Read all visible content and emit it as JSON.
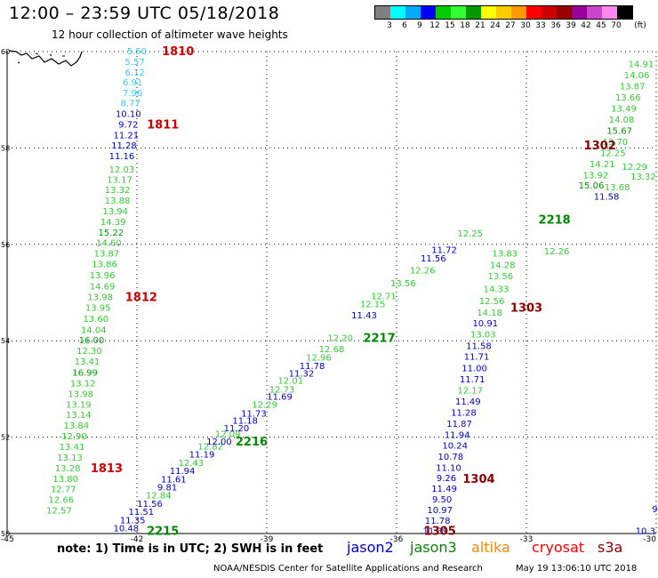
{
  "header": {
    "title": "12:00 – 23:59 UTC 05/18/2018",
    "subtitle": "12 hour collection of altimeter wave heights"
  },
  "legend": {
    "unit": "(ft)",
    "colors": [
      "#808080",
      "#00ffff",
      "#00aaff",
      "#0000ff",
      "#00cc00",
      "#33ff33",
      "#009900",
      "#ffff00",
      "#ffcc00",
      "#ff9900",
      "#ff0000",
      "#cc0000",
      "#990000",
      "#990099",
      "#cc44cc",
      "#ff88ee",
      "#000000"
    ],
    "labels": [
      "3",
      "6",
      "9",
      "12",
      "15",
      "18",
      "21",
      "24",
      "27",
      "30",
      "33",
      "36",
      "39",
      "42",
      "45",
      "70"
    ]
  },
  "axes": {
    "lat_labels": [
      "60",
      "58",
      "56",
      "54",
      "52",
      "50"
    ],
    "lon_labels": [
      "-45",
      "-42",
      "-39",
      "-36",
      "-33",
      "-30"
    ]
  },
  "colors": {
    "jason2": "#0000cc",
    "jason3": "#008800",
    "altika": "#ff8800",
    "cryosat": "#ff0000",
    "s3a": "#880000",
    "grid": "#000000"
  },
  "obs": [
    {
      "t": "5.50",
      "c": "#33ccff",
      "lon": -42.0,
      "lat": 60.0
    },
    {
      "t": "5.57",
      "c": "#33ccff",
      "lon": -42.05,
      "lat": 59.78
    },
    {
      "t": "6.12",
      "c": "#33ccff",
      "lon": -42.05,
      "lat": 59.56
    },
    {
      "t": "6.91",
      "c": "#33ccff",
      "lon": -42.1,
      "lat": 59.35
    },
    {
      "t": "7.96",
      "c": "#33ccff",
      "lon": -42.1,
      "lat": 59.13
    },
    {
      "t": "8.77",
      "c": "#33ccff",
      "lon": -42.15,
      "lat": 58.92
    },
    {
      "t": "10.10",
      "c": "#0000cc",
      "lon": -42.2,
      "lat": 58.7
    },
    {
      "t": "9.72",
      "c": "#0000cc",
      "lon": -42.2,
      "lat": 58.48
    },
    {
      "t": "11.21",
      "c": "#0000cc",
      "lon": -42.25,
      "lat": 58.26
    },
    {
      "t": "11.28",
      "c": "#0000cc",
      "lon": -42.3,
      "lat": 58.04
    },
    {
      "t": "11.16",
      "c": "#0000cc",
      "lon": -42.35,
      "lat": 57.82
    },
    {
      "t": "12.03",
      "c": "#33cc33",
      "lon": -42.35,
      "lat": 57.55
    },
    {
      "t": "13.17",
      "c": "#33cc33",
      "lon": -42.4,
      "lat": 57.33
    },
    {
      "t": "13.32",
      "c": "#33cc33",
      "lon": -42.45,
      "lat": 57.12
    },
    {
      "t": "13.88",
      "c": "#33cc33",
      "lon": -42.45,
      "lat": 56.9
    },
    {
      "t": "13.94",
      "c": "#33cc33",
      "lon": -42.5,
      "lat": 56.68
    },
    {
      "t": "14.39",
      "c": "#33cc33",
      "lon": -42.55,
      "lat": 56.46
    },
    {
      "t": "15.22",
      "c": "#009900",
      "lon": -42.6,
      "lat": 56.24
    },
    {
      "t": "14.60",
      "c": "#33cc33",
      "lon": -42.65,
      "lat": 56.02
    },
    {
      "t": "13.87",
      "c": "#33cc33",
      "lon": -42.7,
      "lat": 55.8
    },
    {
      "t": "13.86",
      "c": "#33cc33",
      "lon": -42.75,
      "lat": 55.58
    },
    {
      "t": "13.96",
      "c": "#33cc33",
      "lon": -42.8,
      "lat": 55.35
    },
    {
      "t": "14.69",
      "c": "#33cc33",
      "lon": -42.8,
      "lat": 55.12
    },
    {
      "t": "13.98",
      "c": "#33cc33",
      "lon": -42.85,
      "lat": 54.9
    },
    {
      "t": "13.95",
      "c": "#33cc33",
      "lon": -42.9,
      "lat": 54.68
    },
    {
      "t": "13.60",
      "c": "#33cc33",
      "lon": -42.95,
      "lat": 54.45
    },
    {
      "t": "14.04",
      "c": "#33cc33",
      "lon": -43.0,
      "lat": 54.22
    },
    {
      "t": "16.00",
      "c": "#009900",
      "lon": -43.05,
      "lat": 54.0
    },
    {
      "t": "12.30",
      "c": "#33cc33",
      "lon": -43.1,
      "lat": 53.78
    },
    {
      "t": "13.41",
      "c": "#33cc33",
      "lon": -43.15,
      "lat": 53.56
    },
    {
      "t": "16.99",
      "c": "#009900",
      "lon": -43.2,
      "lat": 53.33
    },
    {
      "t": "13.12",
      "c": "#33cc33",
      "lon": -43.25,
      "lat": 53.11
    },
    {
      "t": "13.98",
      "c": "#33cc33",
      "lon": -43.3,
      "lat": 52.89
    },
    {
      "t": "13.19",
      "c": "#33cc33",
      "lon": -43.35,
      "lat": 52.67
    },
    {
      "t": "13.14",
      "c": "#33cc33",
      "lon": -43.35,
      "lat": 52.45
    },
    {
      "t": "13.84",
      "c": "#33cc33",
      "lon": -43.4,
      "lat": 52.23
    },
    {
      "t": "12.90",
      "c": "#33cc33",
      "lon": -43.45,
      "lat": 52.01
    },
    {
      "t": "13.41",
      "c": "#33cc33",
      "lon": -43.5,
      "lat": 51.79
    },
    {
      "t": "13.13",
      "c": "#33cc33",
      "lon": -43.55,
      "lat": 51.57
    },
    {
      "t": "13.28",
      "c": "#33cc33",
      "lon": -43.6,
      "lat": 51.35
    },
    {
      "t": "13.80",
      "c": "#33cc33",
      "lon": -43.65,
      "lat": 51.13
    },
    {
      "t": "12.77",
      "c": "#33cc33",
      "lon": -43.7,
      "lat": 50.91
    },
    {
      "t": "12.66",
      "c": "#33cc33",
      "lon": -43.75,
      "lat": 50.69
    },
    {
      "t": "12.57",
      "c": "#33cc33",
      "lon": -43.8,
      "lat": 50.47
    },
    {
      "t": "10.48",
      "c": "#0000cc",
      "lon": -42.25,
      "lat": 50.1
    },
    {
      "t": "11.35",
      "c": "#0000cc",
      "lon": -42.1,
      "lat": 50.27
    },
    {
      "t": "11.51",
      "c": "#0000cc",
      "lon": -41.9,
      "lat": 50.44
    },
    {
      "t": "11.56",
      "c": "#0000cc",
      "lon": -41.7,
      "lat": 50.61
    },
    {
      "t": "12.84",
      "c": "#33cc33",
      "lon": -41.5,
      "lat": 50.78
    },
    {
      "t": "9.81",
      "c": "#0000cc",
      "lon": -41.3,
      "lat": 50.95
    },
    {
      "t": "11.61",
      "c": "#0000cc",
      "lon": -41.15,
      "lat": 51.12
    },
    {
      "t": "11.94",
      "c": "#0000cc",
      "lon": -40.95,
      "lat": 51.29
    },
    {
      "t": "12.43",
      "c": "#33cc33",
      "lon": -40.75,
      "lat": 51.46
    },
    {
      "t": "11.19",
      "c": "#0000cc",
      "lon": -40.5,
      "lat": 51.63
    },
    {
      "t": "12.82",
      "c": "#33cc33",
      "lon": -40.3,
      "lat": 51.8
    },
    {
      "t": "12.00",
      "c": "#0000cc",
      "lon": -40.1,
      "lat": 51.9
    },
    {
      "t": "12.09",
      "c": "#33cc33",
      "lon": -39.9,
      "lat": 52.06
    },
    {
      "t": "11.20",
      "c": "#0000cc",
      "lon": -39.7,
      "lat": 52.18
    },
    {
      "t": "11.18",
      "c": "#0000cc",
      "lon": -39.5,
      "lat": 52.33
    },
    {
      "t": "11.73",
      "c": "#0000cc",
      "lon": -39.3,
      "lat": 52.48
    },
    {
      "t": "12.29",
      "c": "#33cc33",
      "lon": -39.05,
      "lat": 52.67
    },
    {
      "t": "11.69",
      "c": "#0000cc",
      "lon": -38.7,
      "lat": 52.83
    },
    {
      "t": "12.73",
      "c": "#33cc33",
      "lon": -38.65,
      "lat": 52.98
    },
    {
      "t": "12.01",
      "c": "#33cc33",
      "lon": -38.45,
      "lat": 53.16
    },
    {
      "t": "11.32",
      "c": "#0000cc",
      "lon": -38.2,
      "lat": 53.31
    },
    {
      "t": "11.78",
      "c": "#0000cc",
      "lon": -37.95,
      "lat": 53.47
    },
    {
      "t": "12.96",
      "c": "#33cc33",
      "lon": -37.8,
      "lat": 53.64
    },
    {
      "t": "12.68",
      "c": "#33cc33",
      "lon": -37.5,
      "lat": 53.82
    },
    {
      "t": "12.20",
      "c": "#33cc33",
      "lon": -37.3,
      "lat": 54.05
    },
    {
      "t": "11.43",
      "c": "#0000cc",
      "lon": -36.75,
      "lat": 54.52
    },
    {
      "t": "12.15",
      "c": "#33cc33",
      "lon": -36.55,
      "lat": 54.75
    },
    {
      "t": "12.71",
      "c": "#33cc33",
      "lon": -36.3,
      "lat": 54.92
    },
    {
      "t": "13.56",
      "c": "#33cc33",
      "lon": -35.85,
      "lat": 55.18
    },
    {
      "t": "12.26",
      "c": "#33cc33",
      "lon": -35.4,
      "lat": 55.45
    },
    {
      "t": "11.56",
      "c": "#0000cc",
      "lon": -35.15,
      "lat": 55.7
    },
    {
      "t": "11.72",
      "c": "#0000cc",
      "lon": -34.9,
      "lat": 55.88
    },
    {
      "t": "12.25",
      "c": "#33cc33",
      "lon": -34.3,
      "lat": 56.22
    },
    {
      "t": "13.83",
      "c": "#33cc33",
      "lon": -33.5,
      "lat": 55.8
    },
    {
      "t": "14.28",
      "c": "#33cc33",
      "lon": -33.55,
      "lat": 55.56
    },
    {
      "t": "13.56",
      "c": "#33cc33",
      "lon": -33.6,
      "lat": 55.33
    },
    {
      "t": "14.33",
      "c": "#33cc33",
      "lon": -33.7,
      "lat": 55.06
    },
    {
      "t": "12.56",
      "c": "#33cc33",
      "lon": -33.8,
      "lat": 54.82
    },
    {
      "t": "14.18",
      "c": "#33cc33",
      "lon": -33.85,
      "lat": 54.58
    },
    {
      "t": "10.91",
      "c": "#0000cc",
      "lon": -33.95,
      "lat": 54.35
    },
    {
      "t": "13.03",
      "c": "#33cc33",
      "lon": -34.0,
      "lat": 54.12
    },
    {
      "t": "11.58",
      "c": "#0000cc",
      "lon": -34.1,
      "lat": 53.88
    },
    {
      "t": "11.71",
      "c": "#0000cc",
      "lon": -34.15,
      "lat": 53.66
    },
    {
      "t": "11.00",
      "c": "#0000cc",
      "lon": -34.2,
      "lat": 53.42
    },
    {
      "t": "11.71",
      "c": "#0000cc",
      "lon": -34.25,
      "lat": 53.19
    },
    {
      "t": "12.17",
      "c": "#33cc33",
      "lon": -34.3,
      "lat": 52.96
    },
    {
      "t": "11.49",
      "c": "#0000cc",
      "lon": -34.35,
      "lat": 52.73
    },
    {
      "t": "11.28",
      "c": "#0000cc",
      "lon": -34.45,
      "lat": 52.5
    },
    {
      "t": "11.87",
      "c": "#0000cc",
      "lon": -34.55,
      "lat": 52.27
    },
    {
      "t": "11.94",
      "c": "#0000cc",
      "lon": -34.6,
      "lat": 52.04
    },
    {
      "t": "10.24",
      "c": "#0000cc",
      "lon": -34.65,
      "lat": 51.82
    },
    {
      "t": "10.78",
      "c": "#0000cc",
      "lon": -34.75,
      "lat": 51.59
    },
    {
      "t": "11.10",
      "c": "#0000cc",
      "lon": -34.8,
      "lat": 51.36
    },
    {
      "t": "9.26",
      "c": "#0000cc",
      "lon": -34.85,
      "lat": 51.14
    },
    {
      "t": "11.49",
      "c": "#0000cc",
      "lon": -34.9,
      "lat": 50.92
    },
    {
      "t": "9.50",
      "c": "#0000cc",
      "lon": -34.95,
      "lat": 50.7
    },
    {
      "t": "10.97",
      "c": "#0000cc",
      "lon": -35.0,
      "lat": 50.48
    },
    {
      "t": "11.78",
      "c": "#0000cc",
      "lon": -35.05,
      "lat": 50.26
    },
    {
      "t": "11.39",
      "c": "#0000cc",
      "lon": -35.1,
      "lat": 50.05
    },
    {
      "t": "14.91",
      "c": "#33cc33",
      "lon": -30.35,
      "lat": 59.73
    },
    {
      "t": "14.06",
      "c": "#33cc33",
      "lon": -30.45,
      "lat": 59.5
    },
    {
      "t": "13.87",
      "c": "#33cc33",
      "lon": -30.55,
      "lat": 59.27
    },
    {
      "t": "13.66",
      "c": "#33cc33",
      "lon": -30.65,
      "lat": 59.04
    },
    {
      "t": "13.49",
      "c": "#33cc33",
      "lon": -30.75,
      "lat": 58.81
    },
    {
      "t": "14.08",
      "c": "#33cc33",
      "lon": -30.8,
      "lat": 58.58
    },
    {
      "t": "15.67",
      "c": "#009900",
      "lon": -30.85,
      "lat": 58.35
    },
    {
      "t": "13.70",
      "c": "#33cc33",
      "lon": -30.95,
      "lat": 58.12
    },
    {
      "t": "12.25",
      "c": "#33cc33",
      "lon": -31.0,
      "lat": 57.89
    },
    {
      "t": "14.21",
      "c": "#33cc33",
      "lon": -31.25,
      "lat": 57.66
    },
    {
      "t": "13.92",
      "c": "#33cc33",
      "lon": -31.4,
      "lat": 57.43
    },
    {
      "t": "15.06",
      "c": "#009900",
      "lon": -31.5,
      "lat": 57.21
    },
    {
      "t": "11.58",
      "c": "#0000cc",
      "lon": -31.15,
      "lat": 56.98
    },
    {
      "t": "12.29",
      "c": "#33cc33",
      "lon": -30.5,
      "lat": 57.6
    },
    {
      "t": "13.32",
      "c": "#33cc33",
      "lon": -30.3,
      "lat": 57.4
    },
    {
      "t": "13.68",
      "c": "#33cc33",
      "lon": -30.9,
      "lat": 57.18
    },
    {
      "t": "12.26",
      "c": "#33cc33",
      "lon": -32.3,
      "lat": 55.85
    },
    {
      "t": "9.",
      "c": "#0000cc",
      "lon": -30.0,
      "lat": 50.5
    },
    {
      "t": "10.3",
      "c": "#0000cc",
      "lon": -30.25,
      "lat": 50.05
    }
  ],
  "tracks": [
    {
      "t": "1810",
      "c": "#cc0000",
      "lon": -41.05,
      "lat": 60.0
    },
    {
      "t": "1811",
      "c": "#cc0000",
      "lon": -41.4,
      "lat": 58.48
    },
    {
      "t": "1812",
      "c": "#cc0000",
      "lon": -41.9,
      "lat": 54.9
    },
    {
      "t": "1813",
      "c": "#cc0000",
      "lon": -42.7,
      "lat": 51.35
    },
    {
      "t": "2215",
      "c": "#008800",
      "lon": -41.4,
      "lat": 50.05
    },
    {
      "t": "2216",
      "c": "#008800",
      "lon": -39.35,
      "lat": 51.9
    },
    {
      "t": "2217",
      "c": "#008800",
      "lon": -36.4,
      "lat": 54.05
    },
    {
      "t": "2218",
      "c": "#008800",
      "lon": -32.35,
      "lat": 56.5
    },
    {
      "t": "1302",
      "c": "#880000",
      "lon": -31.3,
      "lat": 58.04
    },
    {
      "t": "1303",
      "c": "#880000",
      "lon": -33.0,
      "lat": 54.68
    },
    {
      "t": "1304",
      "c": "#880000",
      "lon": -34.1,
      "lat": 51.13
    },
    {
      "t": "1305",
      "c": "#880000",
      "lon": -35.0,
      "lat": 50.05
    }
  ],
  "footer": {
    "note": "note: 1) Time is in UTC; 2) SWH is in feet",
    "jason2": "jason2",
    "jason3": "jason3",
    "altika": "altika",
    "cryosat": "cryosat",
    "s3a": "s3a",
    "credit": "NOAA/NESDIS Center for Satellite Applications and Research",
    "timestamp": "May 19 13:06:10 UTC 2018"
  }
}
